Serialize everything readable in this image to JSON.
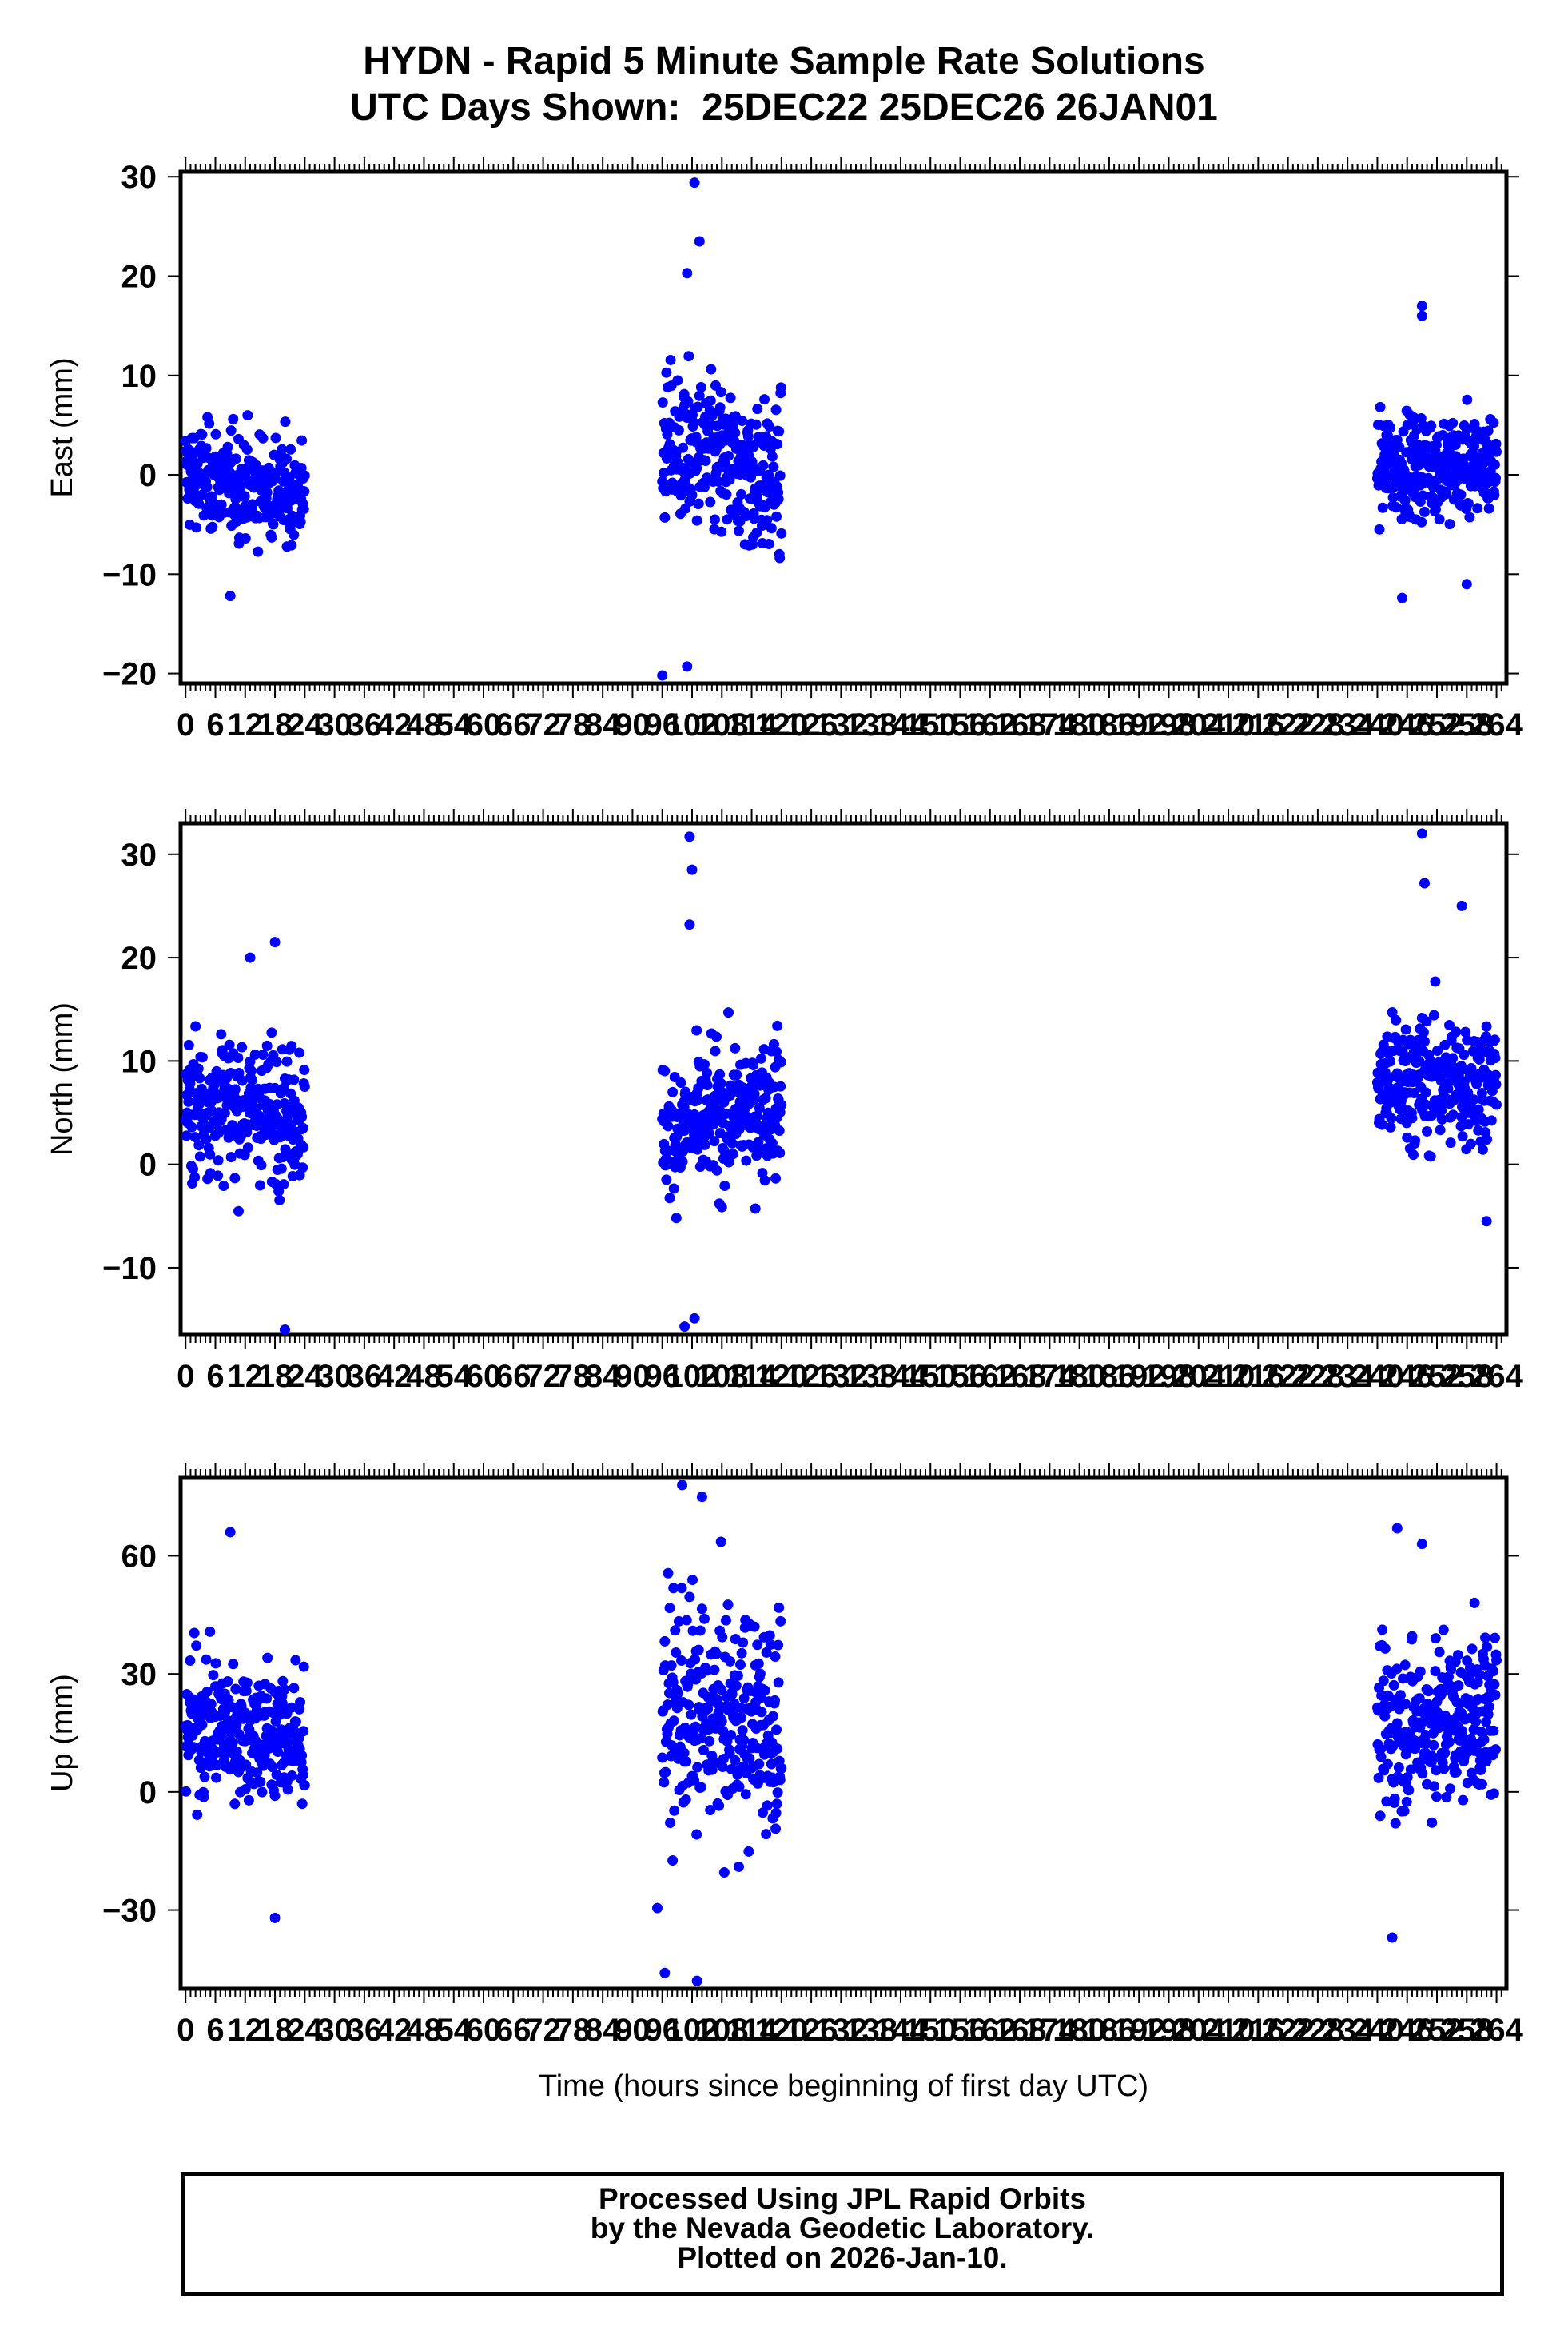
{
  "title_line1": "HYDN - Rapid 5 Minute Sample Rate Solutions",
  "title_line2": "UTC Days Shown:  25DEC22 25DEC26 26JAN01",
  "footer": {
    "line1": "Processed Using JPL Rapid Orbits",
    "line2": "by the Nevada Geodetic Laboratory.",
    "line3": "Plotted on 2026-Jan-10."
  },
  "colors": {
    "points": "#0000ff",
    "axes": "#000000"
  },
  "xlabel": "Time (hours since beginning of first day UTC)",
  "x_ticks": [
    0,
    6,
    12,
    18,
    24,
    30,
    36,
    42,
    48,
    54,
    60,
    66,
    72,
    78,
    84,
    90,
    96,
    102,
    108,
    114,
    120,
    126,
    132,
    138,
    144,
    150,
    156,
    162,
    168,
    174,
    180,
    186,
    192,
    198,
    204,
    210,
    216,
    222,
    228,
    234,
    240,
    246,
    252,
    258,
    264
  ],
  "chart_data": [
    {
      "type": "scatter",
      "ylabel": "East (mm)",
      "xlim": [
        -1,
        266
      ],
      "ylim": [
        -21,
        30.5
      ],
      "y_ticks": [
        -20,
        -10,
        0,
        10,
        20,
        30
      ],
      "grid": false,
      "segments": [
        {
          "x_start": 0,
          "x_end": 24,
          "x_step": 0.0833,
          "mean": 0,
          "spread": 4,
          "mean_end": -2
        },
        {
          "x_start": 96,
          "x_end": 120,
          "x_step": 0.0833,
          "mean": 3,
          "spread": 6,
          "mean_end": -1
        },
        {
          "x_start": 240,
          "x_end": 264,
          "x_step": 0.0833,
          "mean": 1,
          "spread": 4,
          "mean_end": 1
        }
      ],
      "notable_points": [
        {
          "x": 102.5,
          "y": 29.4
        },
        {
          "x": 103.5,
          "y": 23.5
        },
        {
          "x": 101,
          "y": 20.3
        },
        {
          "x": 96,
          "y": -20.2
        },
        {
          "x": 101,
          "y": -19.3
        },
        {
          "x": 9,
          "y": -12.2
        },
        {
          "x": 249,
          "y": 17
        },
        {
          "x": 249,
          "y": 16
        },
        {
          "x": 245,
          "y": -12.4
        },
        {
          "x": 258,
          "y": -11
        }
      ]
    },
    {
      "type": "scatter",
      "ylabel": "North (mm)",
      "xlim": [
        -1,
        266
      ],
      "ylim": [
        -16.5,
        33
      ],
      "y_ticks": [
        -10,
        0,
        10,
        20,
        30
      ],
      "grid": false,
      "segments": [
        {
          "x_start": 0,
          "x_end": 24,
          "x_step": 0.0833,
          "mean": 6,
          "spread": 5,
          "mean_end": 5
        },
        {
          "x_start": 96,
          "x_end": 120,
          "x_step": 0.0833,
          "mean": 3,
          "spread": 5,
          "mean_end": 6
        },
        {
          "x_start": 240,
          "x_end": 264,
          "x_step": 0.0833,
          "mean": 8,
          "spread": 5,
          "mean_end": 8
        }
      ],
      "notable_points": [
        {
          "x": 101.5,
          "y": 31.7
        },
        {
          "x": 102,
          "y": 28.5
        },
        {
          "x": 101.5,
          "y": 23.2
        },
        {
          "x": 100.5,
          "y": -15.7
        },
        {
          "x": 102.5,
          "y": -14.9
        },
        {
          "x": 20,
          "y": -16
        },
        {
          "x": 249,
          "y": 32
        },
        {
          "x": 249.5,
          "y": 27.2
        },
        {
          "x": 257,
          "y": 25
        },
        {
          "x": 18,
          "y": 21.5
        },
        {
          "x": 13,
          "y": 20
        },
        {
          "x": 262,
          "y": -5.5
        }
      ]
    },
    {
      "type": "scatter",
      "ylabel": "Up (mm)",
      "xlim": [
        -1,
        266
      ],
      "ylim": [
        -50,
        80
      ],
      "y_ticks": [
        -30,
        0,
        30,
        60
      ],
      "grid": false,
      "segments": [
        {
          "x_start": 0,
          "x_end": 24,
          "x_step": 0.0833,
          "mean": 18,
          "spread": 14,
          "mean_end": 13
        },
        {
          "x_start": 96,
          "x_end": 120,
          "x_step": 0.0833,
          "mean": 20,
          "spread": 22,
          "mean_end": 17
        },
        {
          "x_start": 240,
          "x_end": 264,
          "x_step": 0.0833,
          "mean": 15,
          "spread": 16,
          "mean_end": 20
        }
      ],
      "notable_points": [
        {
          "x": 100,
          "y": 78
        },
        {
          "x": 104,
          "y": 75
        },
        {
          "x": 96.5,
          "y": -46
        },
        {
          "x": 103,
          "y": -48
        },
        {
          "x": 18,
          "y": -32
        },
        {
          "x": 9,
          "y": 66
        },
        {
          "x": 244,
          "y": 67
        },
        {
          "x": 249,
          "y": 63
        },
        {
          "x": 243,
          "y": -37
        },
        {
          "x": 95,
          "y": -29.5
        }
      ]
    }
  ]
}
